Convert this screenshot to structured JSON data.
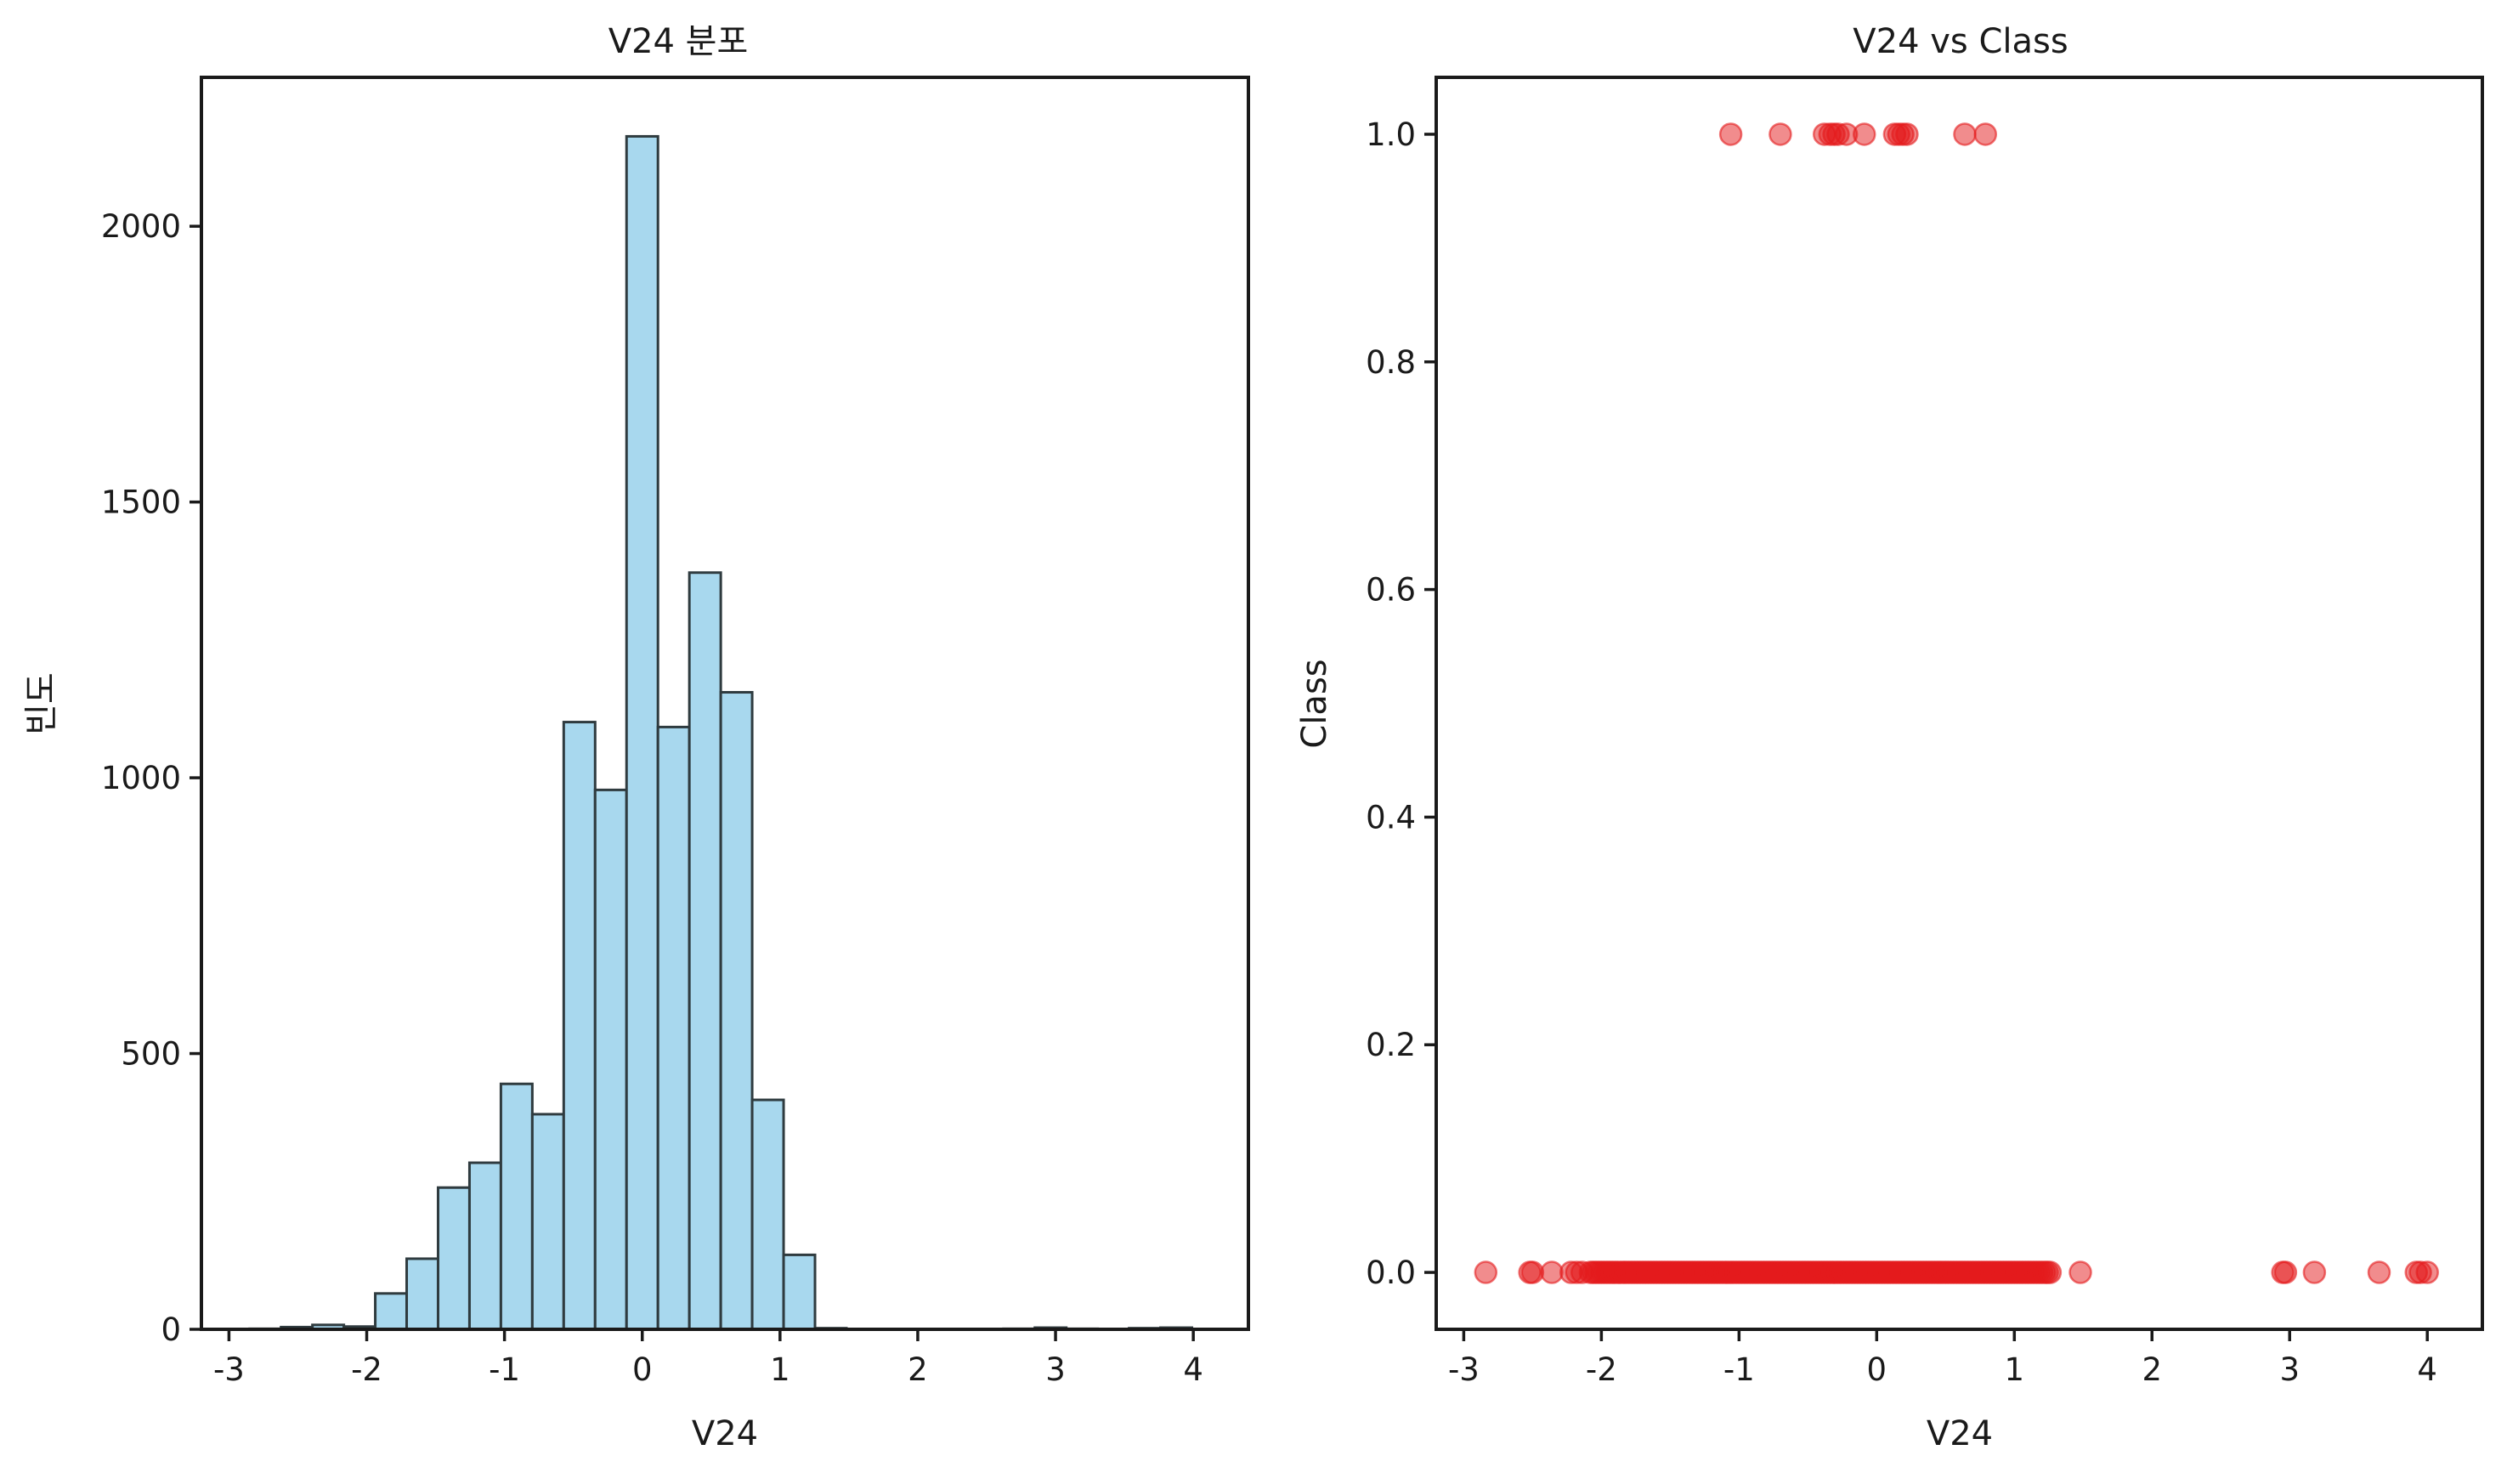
{
  "chart_data": [
    {
      "type": "bar",
      "subtype": "histogram",
      "title": "V24 분포",
      "xlabel": "V24",
      "ylabel": "빈도",
      "xlim": [
        -3.2,
        4.4
      ],
      "ylim": [
        0,
        2270
      ],
      "xticks": [
        -3,
        -2,
        -1,
        0,
        1,
        2,
        3,
        4
      ],
      "xtick_labels": [
        "-3",
        "-2",
        "-1",
        "0",
        "1",
        "2",
        "3",
        "4"
      ],
      "yticks": [
        0,
        500,
        1000,
        1500,
        2000
      ],
      "ytick_labels": [
        "0",
        "500",
        "1000",
        "1500",
        "2000"
      ],
      "bin_width": 0.228,
      "bin_starts": [
        -2.85,
        -2.622,
        -2.394,
        -2.166,
        -1.938,
        -1.71,
        -1.482,
        -1.254,
        -1.026,
        -0.798,
        -0.57,
        -0.342,
        -0.114,
        0.114,
        0.342,
        0.57,
        0.798,
        1.026,
        1.254,
        1.482,
        1.71,
        1.938,
        2.166,
        2.394,
        2.622,
        2.85,
        3.078,
        3.306,
        3.534,
        3.762
      ],
      "values": [
        1,
        4,
        8,
        5,
        65,
        128,
        257,
        302,
        445,
        390,
        1101,
        978,
        2163,
        1092,
        1372,
        1155,
        416,
        135,
        2,
        0,
        0,
        0,
        0,
        0,
        1,
        3,
        1,
        0,
        2,
        3
      ],
      "colors": {
        "bar_fill": "#a8d8ee",
        "bar_edge": "#2f3b3f"
      },
      "grid": false
    },
    {
      "type": "scatter",
      "title": "V24 vs Class",
      "xlabel": "V24",
      "ylabel": "Class",
      "xlim": [
        -3.2,
        4.4
      ],
      "ylim": [
        -0.05,
        1.05
      ],
      "xticks": [
        -3,
        -2,
        -1,
        0,
        1,
        2,
        3,
        4
      ],
      "xtick_labels": [
        "-3",
        "-2",
        "-1",
        "0",
        "1",
        "2",
        "3",
        "4"
      ],
      "yticks": [
        0.0,
        0.2,
        0.4,
        0.6,
        0.8,
        1.0
      ],
      "ytick_labels": [
        "0.0",
        "0.2",
        "0.4",
        "0.6",
        "0.8",
        "1.0"
      ],
      "class1_x": [
        -1.06,
        -0.7,
        -0.38,
        -0.34,
        -0.31,
        -0.28,
        -0.22,
        -0.09,
        0.13,
        0.16,
        0.19,
        0.22,
        0.64,
        0.79
      ],
      "class0_x_extra": [
        -2.84,
        -2.52,
        -2.5,
        -2.36,
        -2.22,
        -2.18,
        -2.14,
        1.48,
        2.95,
        2.97,
        3.18,
        3.65,
        3.92,
        3.95,
        4.0
      ],
      "class0_dense_range": [
        -2.08,
        1.27
      ],
      "colors": {
        "point": "#e41a1c"
      },
      "grid": false
    }
  ]
}
